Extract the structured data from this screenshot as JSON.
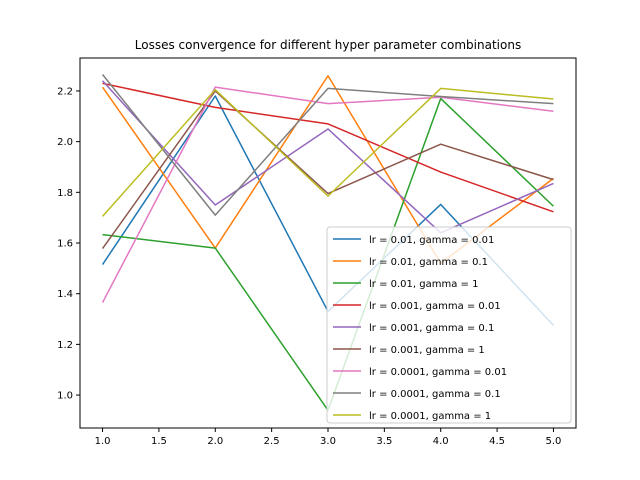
{
  "chart_data": {
    "type": "line",
    "title": "Losses convergence for different hyper parameter combinations",
    "xlabel": "",
    "ylabel": "",
    "x": [
      1.0,
      2.0,
      3.0,
      4.0,
      5.0
    ],
    "xlim": [
      0.8,
      5.2
    ],
    "ylim": [
      0.87,
      2.33
    ],
    "xticks": [
      1.0,
      1.5,
      2.0,
      2.5,
      3.0,
      3.5,
      4.0,
      4.5,
      5.0
    ],
    "xtick_labels": [
      "1.0",
      "1.5",
      "2.0",
      "2.5",
      "3.0",
      "3.5",
      "4.0",
      "4.5",
      "5.0"
    ],
    "yticks": [
      1.0,
      1.2,
      1.4,
      1.6,
      1.8,
      2.0,
      2.2
    ],
    "ytick_labels": [
      "1.0",
      "1.2",
      "1.4",
      "1.6",
      "1.8",
      "2.0",
      "2.2"
    ],
    "grid": false,
    "legend_position": "lower-right",
    "series": [
      {
        "name": "lr = 0.01, gamma = 0.01",
        "color": "#1f77b4",
        "values": [
          1.515,
          2.18,
          1.33,
          1.752,
          1.275
        ]
      },
      {
        "name": "lr = 0.01, gamma = 0.1",
        "color": "#ff7f0e",
        "values": [
          2.215,
          1.58,
          2.26,
          1.52,
          1.855
        ]
      },
      {
        "name": "lr = 0.01, gamma = 1",
        "color": "#2ca02c",
        "values": [
          1.633,
          1.58,
          0.94,
          2.17,
          1.745
        ]
      },
      {
        "name": "lr = 0.001, gamma = 0.01",
        "color": "#d62728",
        "values": [
          2.23,
          2.135,
          2.07,
          1.88,
          1.723
        ]
      },
      {
        "name": "lr = 0.001, gamma = 0.1",
        "color": "#9467bd",
        "values": [
          2.24,
          1.75,
          2.05,
          1.64,
          1.835
        ]
      },
      {
        "name": "lr = 0.001, gamma = 1",
        "color": "#8c564b",
        "values": [
          1.578,
          2.2,
          1.795,
          1.99,
          1.85
        ]
      },
      {
        "name": "lr = 0.0001, gamma = 0.01",
        "color": "#e377c2",
        "values": [
          1.365,
          2.215,
          2.15,
          2.175,
          2.12
        ]
      },
      {
        "name": "lr = 0.0001, gamma = 0.1",
        "color": "#7f7f7f",
        "values": [
          2.265,
          1.71,
          2.21,
          2.178,
          2.15
        ]
      },
      {
        "name": "lr = 0.0001, gamma = 1",
        "color": "#bcbd22",
        "values": [
          1.705,
          2.205,
          1.785,
          2.21,
          2.168
        ]
      }
    ]
  }
}
